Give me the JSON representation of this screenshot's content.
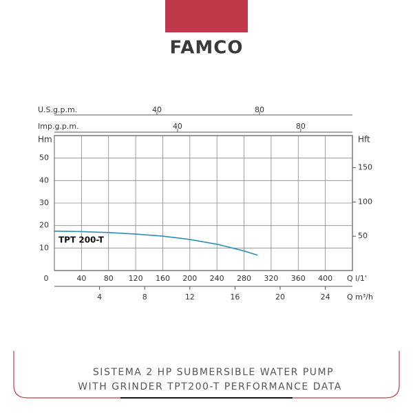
{
  "brand": "FAMCO",
  "caption": [
    "SISTEMA 2 HP SUBMERSIBLE WATER PUMP",
    "WITH GRINDER TPT200-T PERFORMANCE DATA"
  ],
  "chart_data": {
    "type": "line",
    "xlabel": "Q l/1'",
    "ylabel": "Hm",
    "y2label": "Hft",
    "xlim": [
      0,
      440
    ],
    "xticks": [
      0,
      40,
      80,
      120,
      160,
      200,
      240,
      280,
      320,
      360,
      400
    ],
    "ylim": [
      0,
      60
    ],
    "yticks": [
      10,
      20,
      30,
      40,
      50
    ],
    "y2lim": [
      0,
      196.85
    ],
    "y2ticks": [
      50,
      100,
      150
    ],
    "x2label": "U.S.g.p.m.",
    "x2lim": [
      0,
      116.24
    ],
    "x2ticks": [
      40,
      80
    ],
    "x3label": "Imp.g.p.m.",
    "x3lim": [
      0,
      96.79
    ],
    "x3ticks": [
      40,
      80
    ],
    "x4label": "Q m³/h",
    "x4lim": [
      0,
      26.4
    ],
    "x4ticks": [
      4,
      8,
      12,
      16,
      20,
      24
    ],
    "grid": true,
    "x": [
      0,
      40,
      80,
      120,
      160,
      200,
      240,
      280,
      300
    ],
    "series": [
      {
        "name": "TPT 200-T",
        "color": "#2b8fb5",
        "values": [
          17.5,
          17.3,
          16.9,
          16.2,
          15.3,
          13.8,
          11.7,
          8.7,
          6.8
        ]
      }
    ]
  }
}
